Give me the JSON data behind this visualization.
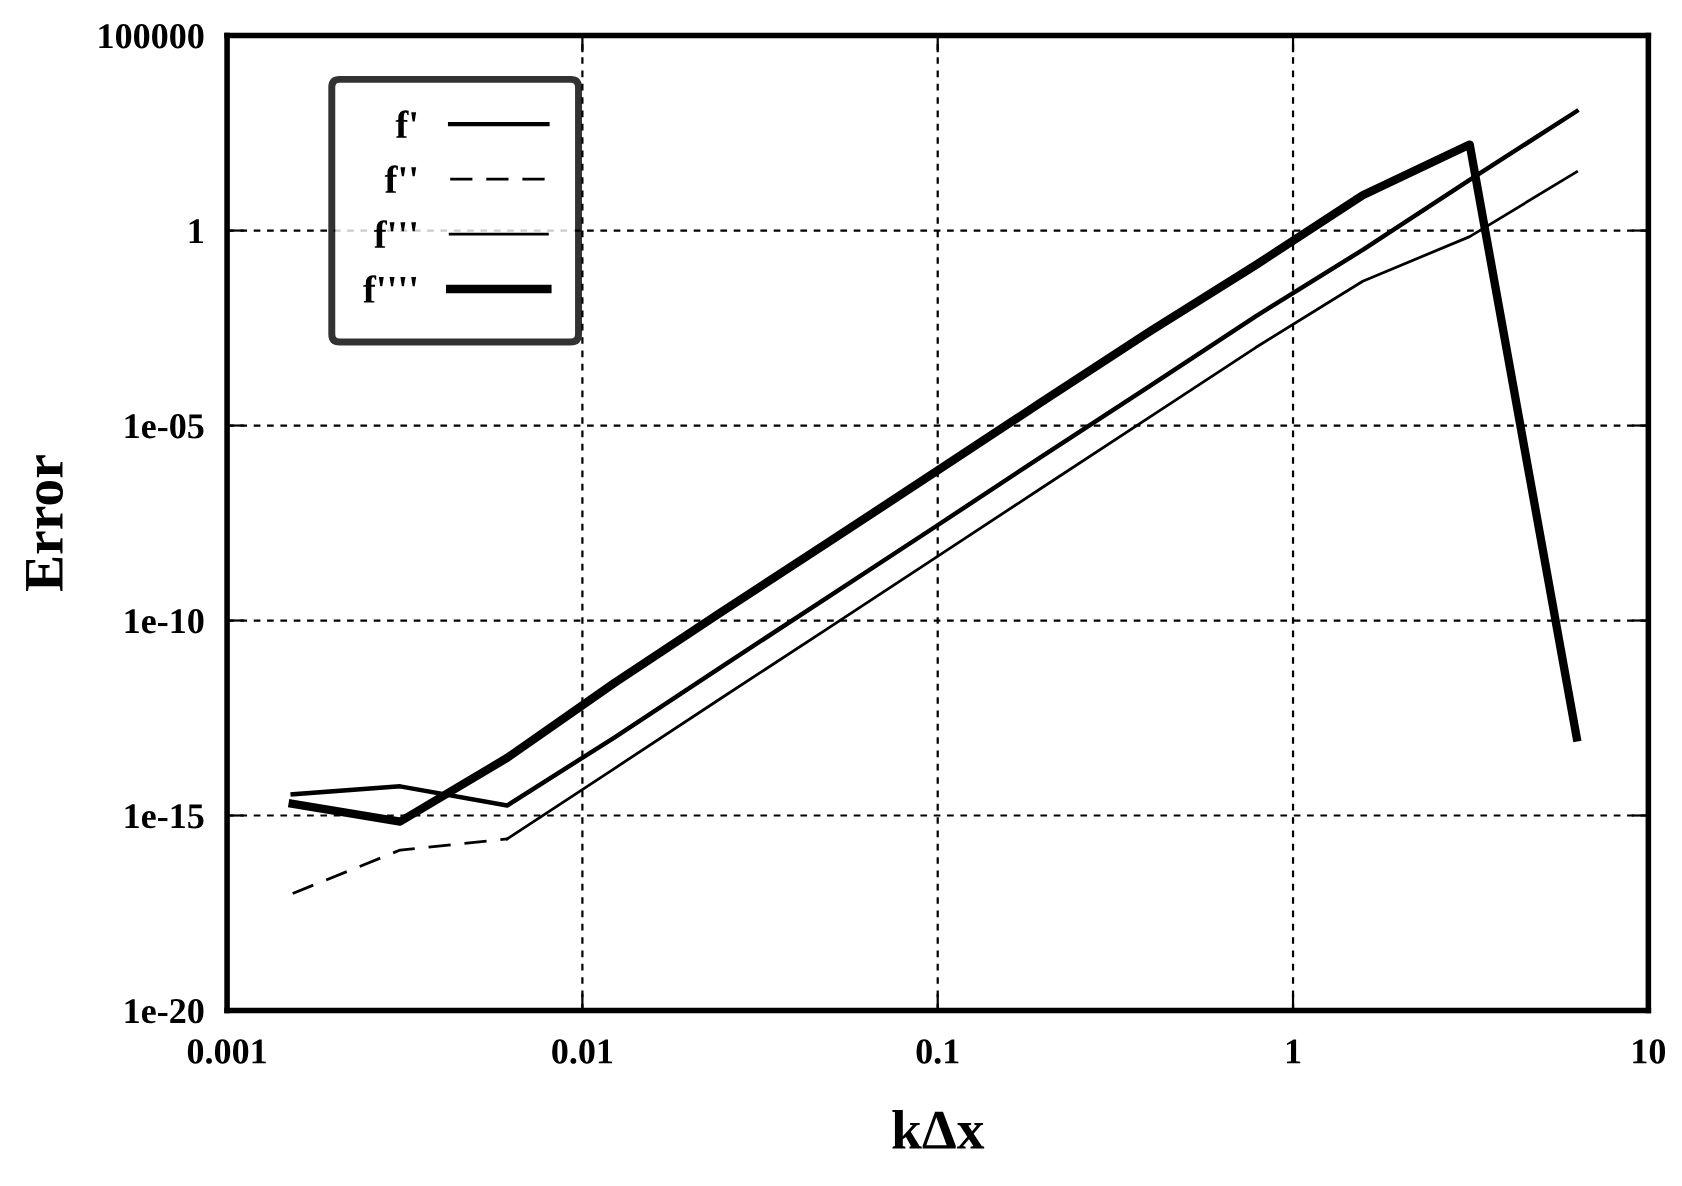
{
  "chart_data": {
    "type": "line",
    "xlabel": "kΔx",
    "ylabel": "Error",
    "log": "xy",
    "grid": true,
    "legend": "top left",
    "x": [
      0.00153,
      0.00307,
      0.00614,
      0.0123,
      0.0245,
      0.0491,
      0.0982,
      0.196,
      0.393,
      0.785,
      1.571,
      3.142,
      6.283
    ],
    "xlim": [
      0.001,
      10
    ],
    "xticks": [
      0.001,
      0.01,
      0.1,
      1,
      10
    ],
    "ylim": [
      1e-20,
      100000
    ],
    "yticks": [
      {
        "value": 1e-20,
        "label": "1e-20"
      },
      {
        "value": 1e-15,
        "label": "1e-15"
      },
      {
        "value": 1e-10,
        "label": "1e-10"
      },
      {
        "value": 1e-05,
        "label": "1e-05"
      },
      {
        "value": 1,
        "label": "1"
      },
      {
        "value": 100000,
        "label": "100000"
      }
    ],
    "series": [
      {
        "name": "f'",
        "color": "#000000",
        "line_style": "solid",
        "values": [
          3.5e-15,
          5.6e-15,
          1.8e-15,
          1e-13,
          6.3e-12,
          4e-10,
          2.5e-08,
          1.6e-06,
          0.0001,
          0.0063,
          0.32,
          20,
          1150
        ]
      },
      {
        "name": "f''",
        "color": "#000000",
        "line_style": "dashed",
        "values": [
          1e-17,
          1.3e-16,
          2.5e-16,
          null,
          null,
          null,
          null,
          null,
          null,
          null,
          null,
          null,
          null
        ]
      },
      {
        "name": "f'''",
        "color": "#000000",
        "line_style": "solid",
        "values": [
          null,
          null,
          2.5e-16,
          1.6e-14,
          1e-12,
          6.3e-11,
          4e-09,
          2.5e-07,
          1.6e-05,
          0.001,
          0.05,
          0.7,
          32
        ]
      },
      {
        "name": "f''''",
        "color": "#000000",
        "line_style": "solid",
        "values": [
          2e-15,
          7e-16,
          3e-14,
          2.5e-12,
          1.6e-10,
          1e-08,
          6.3e-07,
          4e-05,
          0.0025,
          0.13,
          8,
          160,
          1e-13
        ]
      }
    ]
  }
}
